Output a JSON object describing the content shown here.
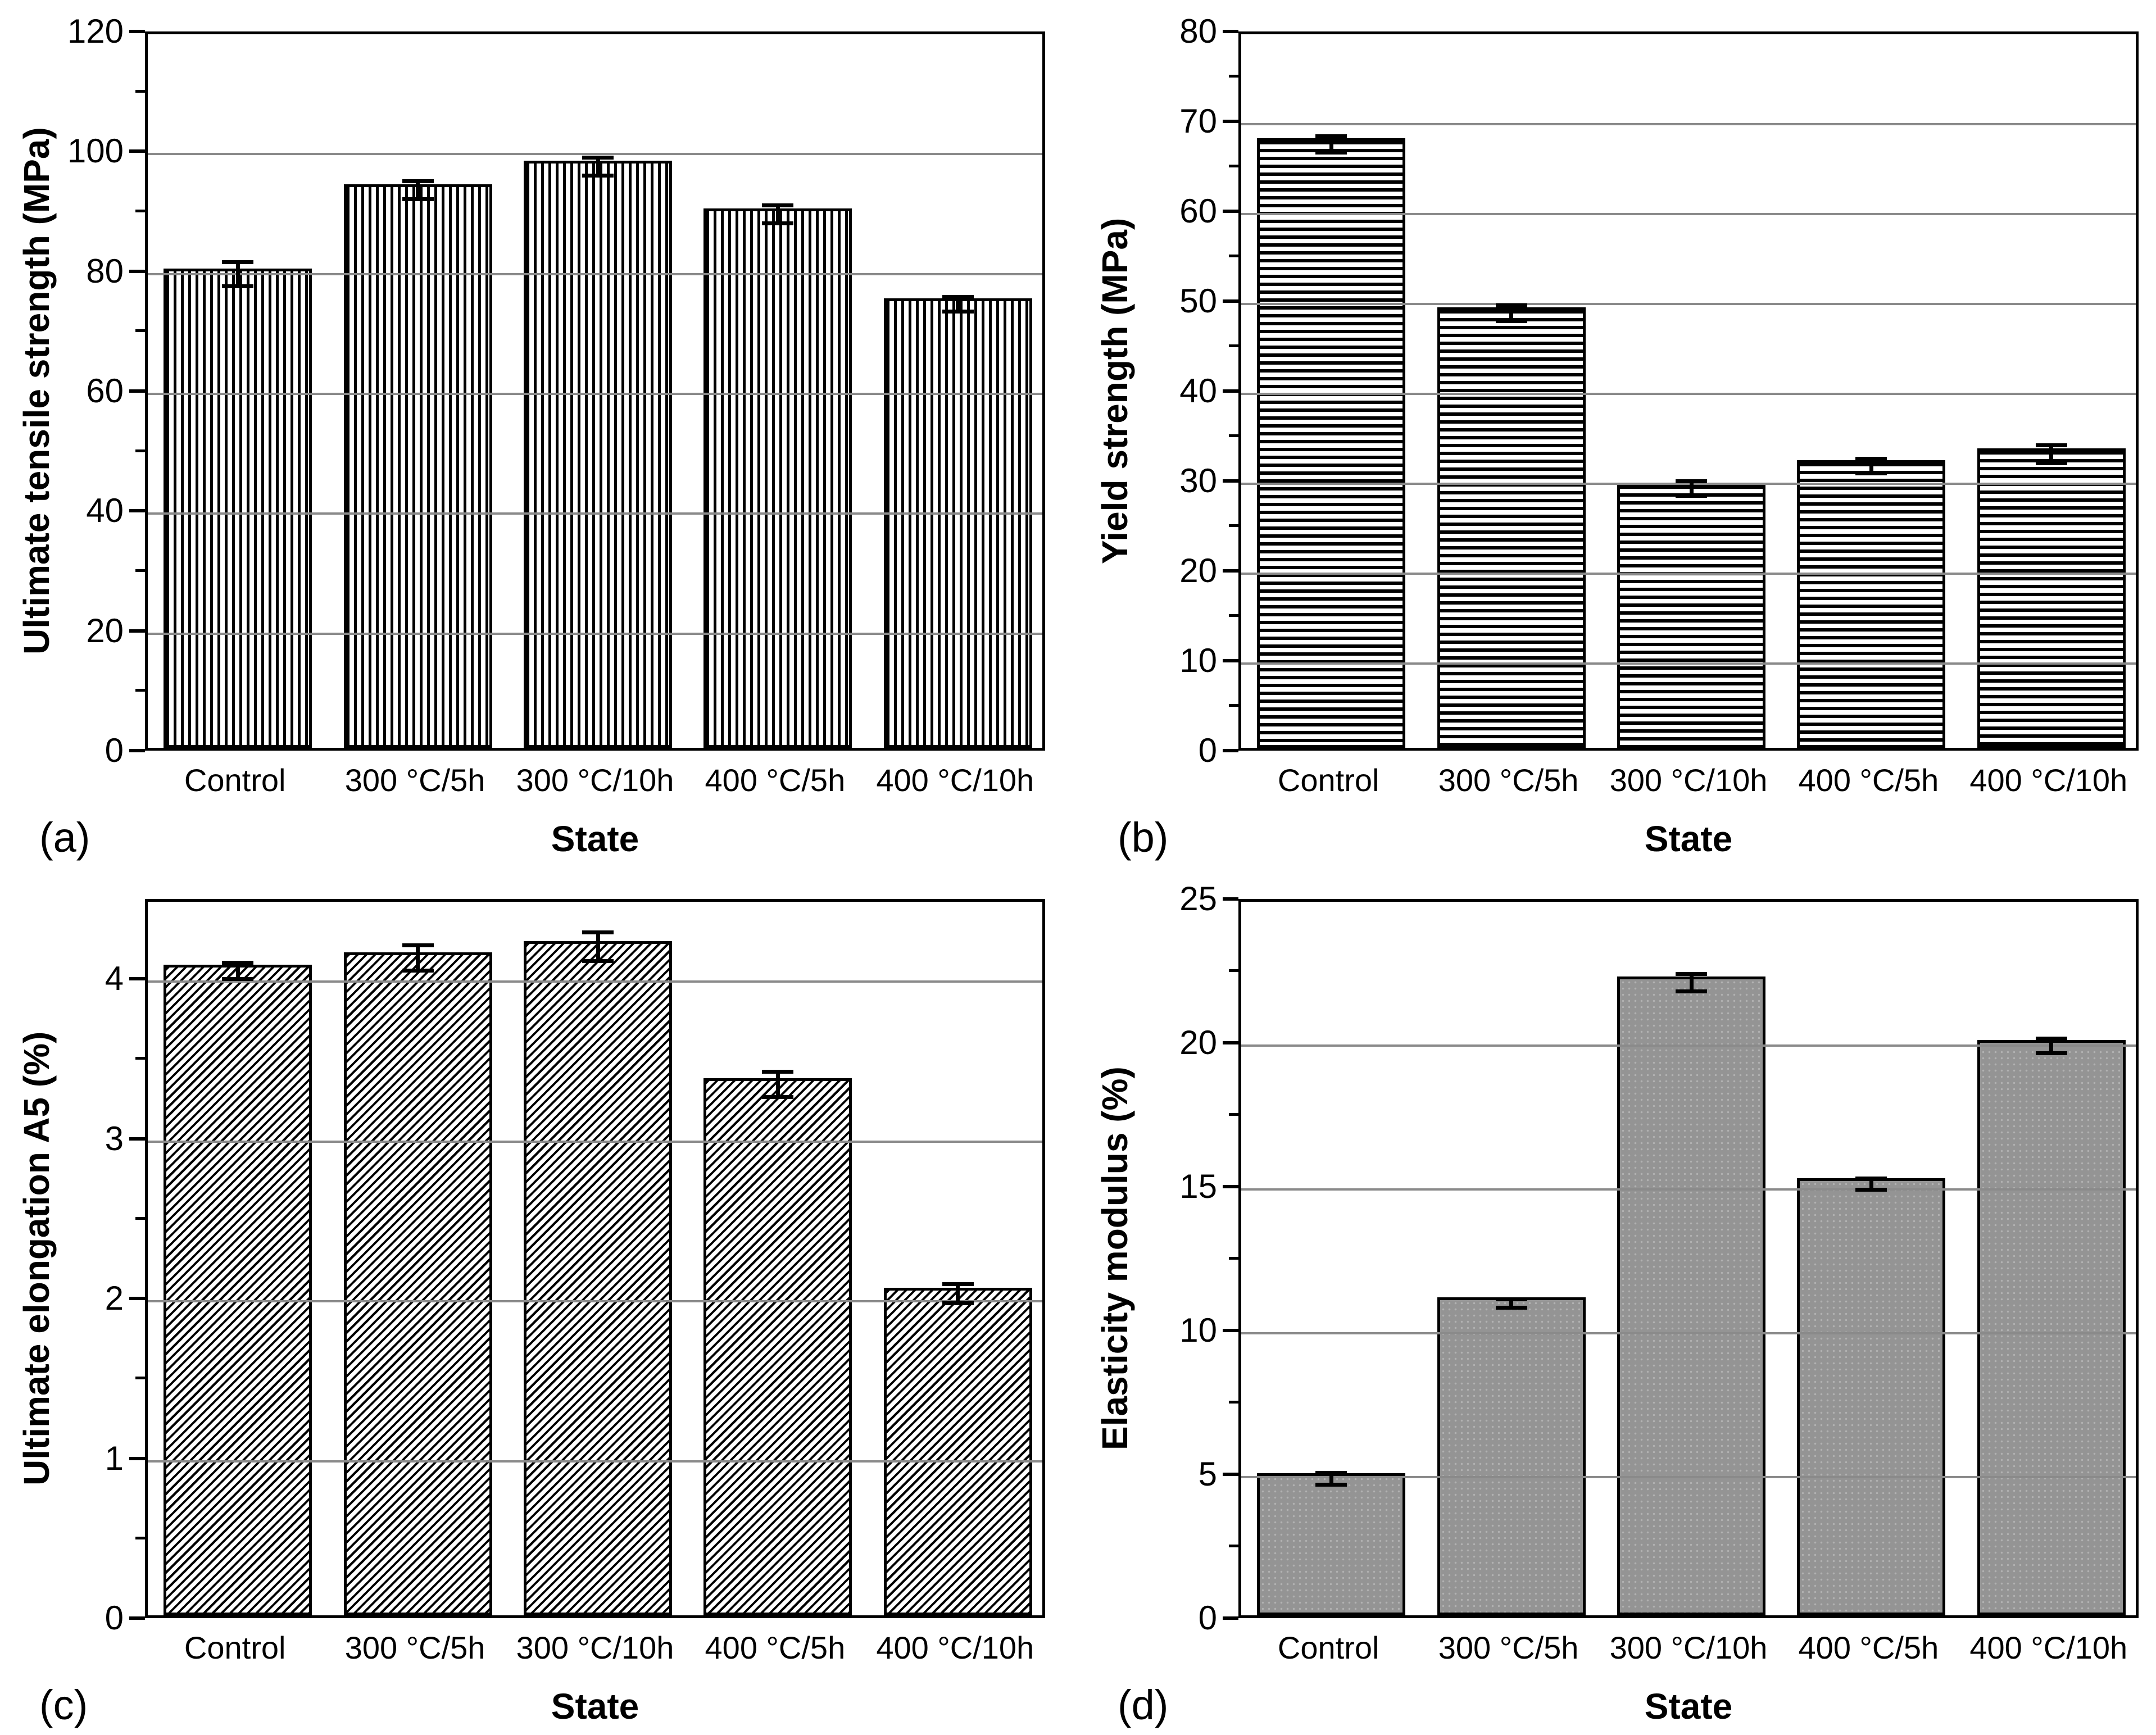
{
  "figure": {
    "description": "Four-panel bar chart of mechanical properties versus heat-treatment state",
    "colors": {
      "background": "#ffffff",
      "ink": "#000000",
      "gridline": "#8a8a8a",
      "solid_bar_gray": "#949494"
    }
  },
  "chart_data": [
    {
      "type": "bar",
      "letter": "(a)",
      "xlabel": "State",
      "ylabel": "Ultimate tensile strength (MPa)",
      "categories": [
        "Control",
        "300 °C/5h",
        "300 °C/10h",
        "400 °C/5h",
        "400 °C/10h"
      ],
      "values": [
        80,
        94,
        98,
        90,
        75
      ],
      "errors": [
        2.0,
        1.5,
        1.5,
        1.5,
        1.2
      ],
      "ylim": [
        0,
        120
      ],
      "ytick_step": 20,
      "yminor_step": 10,
      "yticks": [
        "0",
        "20",
        "40",
        "60",
        "80",
        "100",
        "120"
      ],
      "hatch": "vertical",
      "grid": "horizontal-majors",
      "legend": null
    },
    {
      "type": "bar",
      "letter": "(b)",
      "xlabel": "State",
      "ylabel": "Yield strength (MPa)",
      "categories": [
        "Control",
        "300 °C/5h",
        "300 °C/10h",
        "400 °C/5h",
        "400 °C/10h"
      ],
      "values": [
        67.8,
        49,
        29.5,
        32,
        33.3
      ],
      "errors": [
        0.9,
        0.9,
        0.8,
        0.8,
        1.0
      ],
      "ylim": [
        0,
        80
      ],
      "ytick_step": 10,
      "yminor_step": 5,
      "yticks": [
        "0",
        "10",
        "20",
        "30",
        "40",
        "50",
        "60",
        "70",
        "80"
      ],
      "hatch": "horizontal",
      "grid": "horizontal-majors",
      "legend": null
    },
    {
      "type": "bar",
      "letter": "(c)",
      "xlabel": "State",
      "ylabel": "Ultimate elongation A5 (%)",
      "categories": [
        "Control",
        "300 °C/5h",
        "300 °C/10h",
        "400 °C/5h",
        "400 °C/10h"
      ],
      "values": [
        4.07,
        4.15,
        4.22,
        3.36,
        2.05
      ],
      "errors": [
        0.05,
        0.08,
        0.09,
        0.08,
        0.06
      ],
      "ylim": [
        0,
        4.5
      ],
      "ytick_step": 1,
      "yminor_step": 0.5,
      "yticks": [
        "0",
        "1",
        "2",
        "3",
        "4"
      ],
      "hatch": "diagonal",
      "grid": "horizontal-majors",
      "legend": null
    },
    {
      "type": "bar",
      "letter": "(d)",
      "xlabel": "State",
      "ylabel": "Elasticity modulus (%)",
      "categories": [
        "Control",
        "300 °C/5h",
        "300 °C/10h",
        "400 °C/5h",
        "400 °C/10h"
      ],
      "values": [
        4.95,
        11.05,
        22.2,
        15.2,
        20.0
      ],
      "errors": [
        0.2,
        0.15,
        0.3,
        0.2,
        0.25
      ],
      "ylim": [
        0,
        25
      ],
      "ytick_step": 5,
      "yminor_step": 2.5,
      "yticks": [
        "0",
        "5",
        "10",
        "15",
        "20",
        "25"
      ],
      "hatch": "solid",
      "grid": "horizontal-majors",
      "legend": null
    }
  ]
}
